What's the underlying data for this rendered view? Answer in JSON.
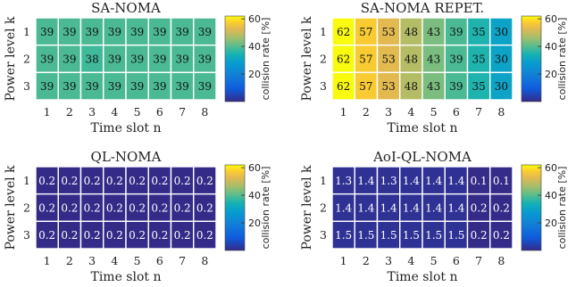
{
  "chart_data": [
    {
      "type": "heatmap",
      "title": "SA-NOMA",
      "xlabel": "Time slot n",
      "ylabel": "Power level k",
      "x": [
        1,
        2,
        3,
        4,
        5,
        6,
        7,
        8
      ],
      "y": [
        1,
        2,
        3
      ],
      "values": [
        [
          "39",
          "39",
          "39",
          "39",
          "39",
          "39",
          "39",
          "39"
        ],
        [
          "39",
          "39",
          "38",
          "39",
          "39",
          "39",
          "39",
          "39"
        ],
        [
          "39",
          "39",
          "39",
          "39",
          "39",
          "39",
          "39",
          "39"
        ]
      ],
      "colorbar": {
        "label": "collision rate [%]",
        "ticks": [
          "20",
          "40",
          "60"
        ],
        "range": [
          0,
          62
        ]
      }
    },
    {
      "type": "heatmap",
      "title": "SA-NOMA REPET.",
      "xlabel": "Time slot n",
      "ylabel": "Power level k",
      "x": [
        1,
        2,
        3,
        4,
        5,
        6,
        7,
        8
      ],
      "y": [
        1,
        2,
        3
      ],
      "values": [
        [
          "62",
          "57",
          "53",
          "48",
          "43",
          "39",
          "35",
          "30"
        ],
        [
          "62",
          "57",
          "53",
          "48",
          "43",
          "39",
          "35",
          "30"
        ],
        [
          "62",
          "57",
          "53",
          "48",
          "43",
          "39",
          "35",
          "30"
        ]
      ],
      "colorbar": {
        "label": "collision rate [%]",
        "ticks": [
          "20",
          "40",
          "60"
        ],
        "range": [
          0,
          62
        ]
      }
    },
    {
      "type": "heatmap",
      "title": "QL-NOMA",
      "xlabel": "Time slot n",
      "ylabel": "Power level k",
      "x": [
        1,
        2,
        3,
        4,
        5,
        6,
        7,
        8
      ],
      "y": [
        1,
        2,
        3
      ],
      "values": [
        [
          "0.2",
          "0.2",
          "0.2",
          "0.2",
          "0.2",
          "0.2",
          "0.2",
          "0.2"
        ],
        [
          "0.2",
          "0.2",
          "0.2",
          "0.2",
          "0.2",
          "0.2",
          "0.2",
          "0.2"
        ],
        [
          "0.2",
          "0.2",
          "0.2",
          "0.2",
          "0.2",
          "0.2",
          "0.2",
          "0.2"
        ]
      ],
      "colorbar": {
        "label": "collision rate [%]",
        "ticks": [
          "20",
          "40",
          "60"
        ],
        "range": [
          0,
          62
        ]
      }
    },
    {
      "type": "heatmap",
      "title": "AoI-QL-NOMA",
      "xlabel": "Time slot n",
      "ylabel": "Power level k",
      "x": [
        1,
        2,
        3,
        4,
        5,
        6,
        7,
        8
      ],
      "y": [
        1,
        2,
        3
      ],
      "values": [
        [
          "1.3",
          "1.4",
          "1.3",
          "1.4",
          "1.4",
          "1.4",
          "0.1",
          "0.1"
        ],
        [
          "1.4",
          "1.4",
          "1.4",
          "1.4",
          "1.4",
          "1.4",
          "0.2",
          "0.2"
        ],
        [
          "1.5",
          "1.5",
          "1.5",
          "1.5",
          "1.5",
          "1.5",
          "0.2",
          "0.2"
        ]
      ],
      "colorbar": {
        "label": "collision rate [%]",
        "ticks": [
          "20",
          "40",
          "60"
        ],
        "range": [
          0,
          62
        ]
      }
    }
  ]
}
